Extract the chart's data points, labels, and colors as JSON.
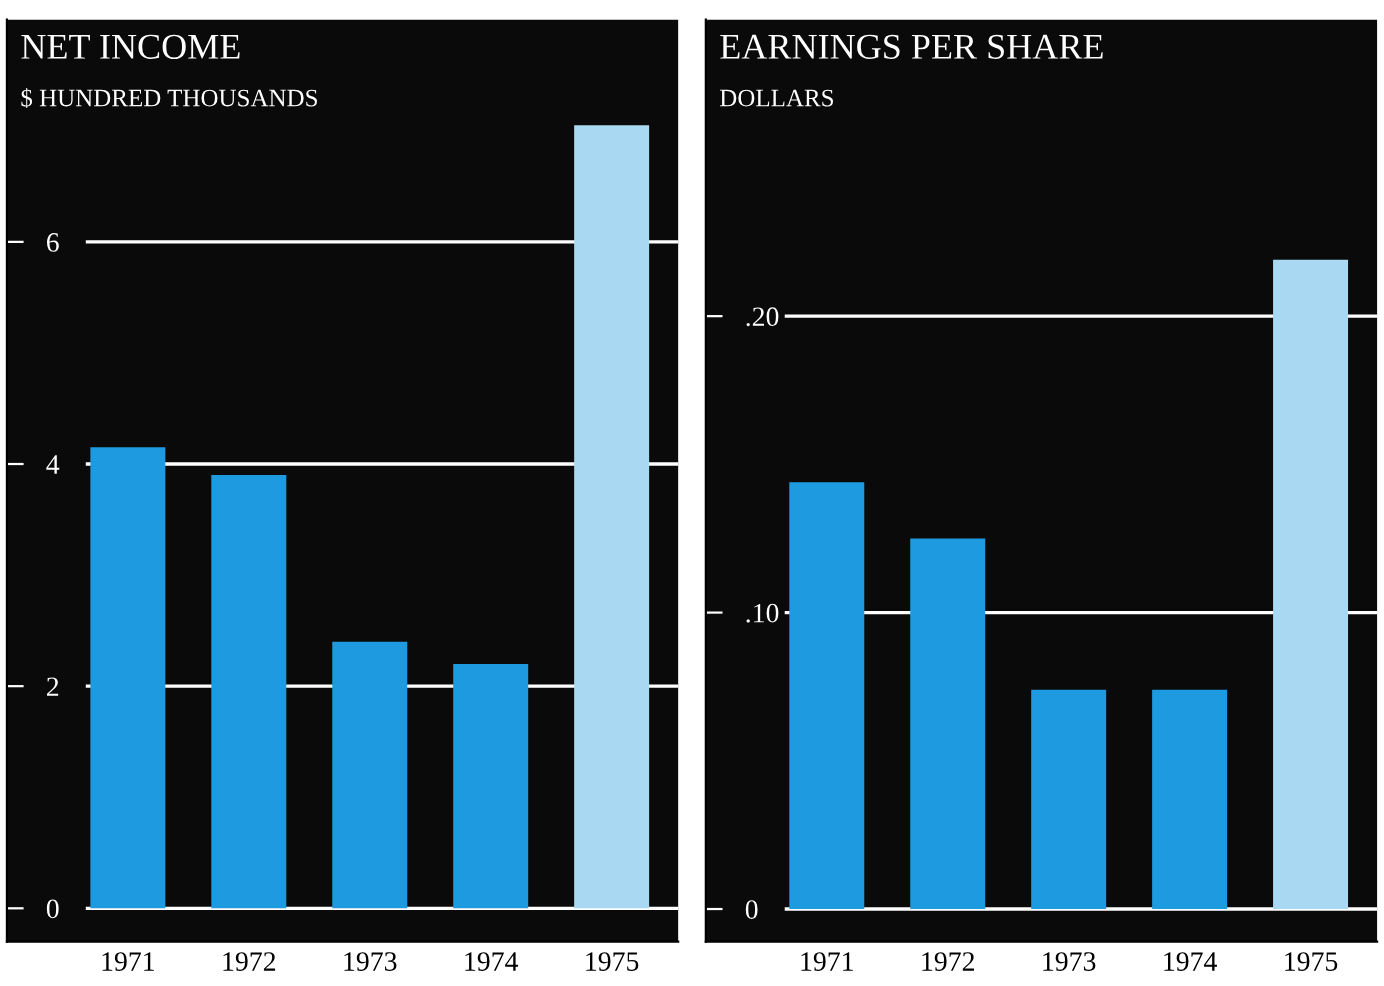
{
  "chart_data": [
    {
      "type": "bar",
      "title": "NET INCOME",
      "subtitle": "$ HUNDRED THOUSANDS",
      "categories": [
        "1971",
        "1972",
        "1973",
        "1974",
        "1975"
      ],
      "values": [
        4.15,
        3.9,
        2.4,
        2.2,
        7.05
      ],
      "colors": [
        "#1e9be0",
        "#1e9be0",
        "#1e9be0",
        "#1e9be0",
        "#a9d9f2"
      ],
      "ylim": [
        -0.3,
        8
      ],
      "yticks": [
        0,
        2,
        4,
        6
      ],
      "grid": "y"
    },
    {
      "type": "bar",
      "title": "EARNINGS PER SHARE",
      "subtitle": "DOLLARS",
      "categories": [
        "1971",
        "1972",
        "1973",
        "1974",
        "1975"
      ],
      "values": [
        0.144,
        0.125,
        0.074,
        0.074,
        0.219
      ],
      "colors": [
        "#1e9be0",
        "#1e9be0",
        "#1e9be0",
        "#1e9be0",
        "#a9d9f2"
      ],
      "ylim": [
        -0.011,
        0.3
      ],
      "yticks": [
        0,
        {
          "value": 0.1,
          "label": ".10"
        },
        {
          "value": 0.2,
          "label": ".20"
        }
      ],
      "grid": "y"
    }
  ]
}
